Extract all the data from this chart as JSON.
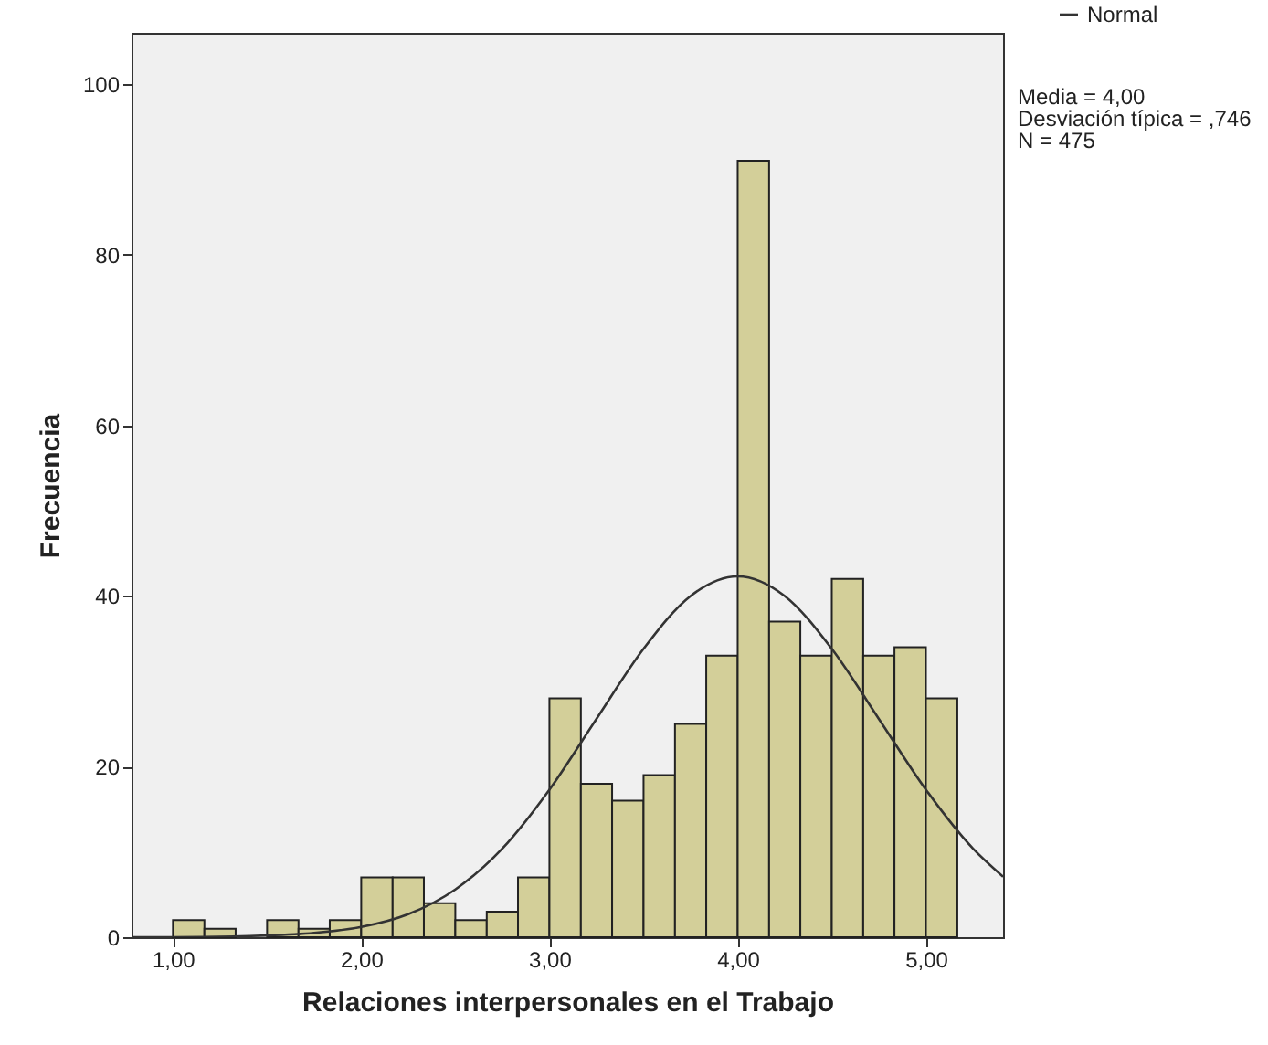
{
  "chart_data": {
    "type": "histogram",
    "xlabel": "Relaciones interpersonales en el Trabajo",
    "ylabel": "Frecuencia",
    "bins": [
      1,
      1.167,
      1.333,
      1.5,
      1.667,
      1.833,
      2,
      2.167,
      2.333,
      2.5,
      2.667,
      2.833,
      3,
      3.167,
      3.333,
      3.5,
      3.667,
      3.833,
      4,
      4.167,
      4.333,
      4.5,
      4.667,
      4.833,
      5,
      5.167
    ],
    "values": [
      2,
      1,
      0,
      2,
      1,
      2,
      7,
      7,
      4,
      2,
      3,
      7,
      28,
      18,
      16,
      19,
      25,
      33,
      91,
      37,
      33,
      42,
      33,
      34,
      28
    ],
    "color": "#d3cf99",
    "series": [
      {
        "name": "Normal",
        "type": "line",
        "color": "#333333",
        "x": [
          0.78,
          1,
          1.5,
          1.75,
          2,
          2.25,
          2.5,
          2.75,
          3,
          3.25,
          3.5,
          3.75,
          4,
          4.25,
          4.5,
          4.75,
          5,
          5.25,
          5.41
        ],
        "values": [
          0,
          0,
          0.2,
          0.5,
          1.2,
          2.7,
          5.6,
          10.4,
          17.3,
          25.6,
          33.8,
          40,
          42.3,
          40,
          33.8,
          25.6,
          17.3,
          10.4,
          7.1
        ]
      }
    ],
    "xlim": [
      0.78,
      5.41
    ],
    "xticks": [
      {
        "value": 1,
        "label": "1,00"
      },
      {
        "value": 2,
        "label": "2,00"
      },
      {
        "value": 3,
        "label": "3,00"
      },
      {
        "value": 4,
        "label": "4,00"
      },
      {
        "value": 5,
        "label": "5,00"
      }
    ],
    "ylim": [
      0,
      106
    ],
    "yticks": [
      0,
      20,
      40,
      60,
      80,
      100
    ],
    "grid": false,
    "legend": "top right",
    "annotations": [
      "Media = 4,00",
      "Desviación típica = ,746",
      "N = 475"
    ]
  }
}
